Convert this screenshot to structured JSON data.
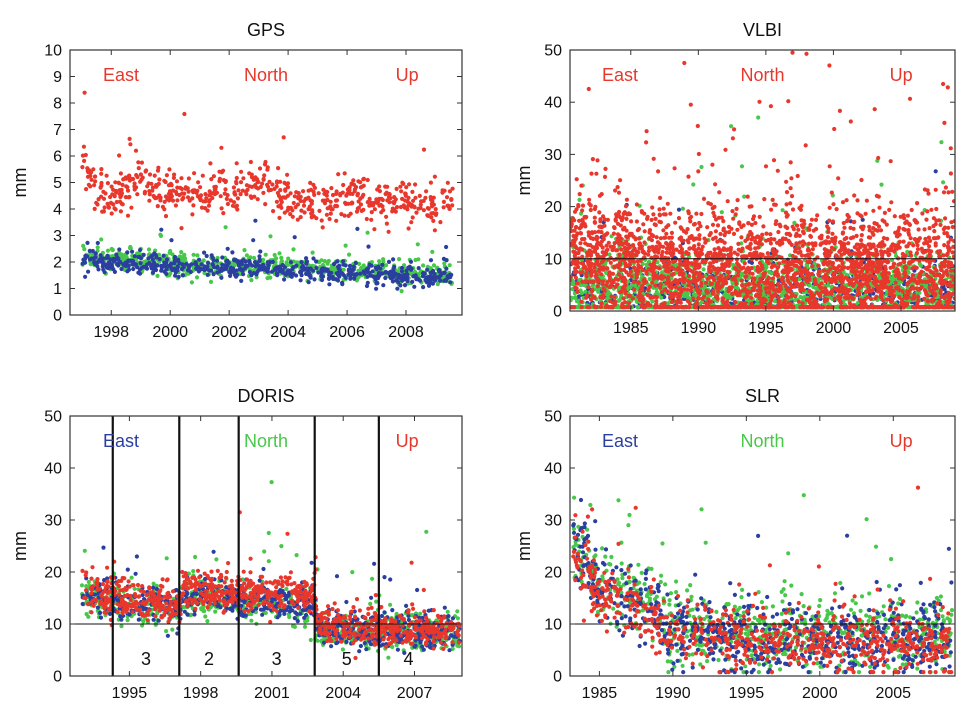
{
  "colors": {
    "east": "#2b3fa0",
    "north": "#48c84a",
    "up": "#e8372c"
  },
  "chart_data": [
    {
      "type": "scatter",
      "title": "GPS",
      "ylabel": "mm",
      "xlim": [
        1996.6,
        2009.9
      ],
      "ylim": [
        0,
        10
      ],
      "xticks": [
        1998,
        2000,
        2002,
        2004,
        2006,
        2008
      ],
      "yticks": [
        0,
        1,
        2,
        3,
        4,
        5,
        6,
        7,
        8,
        9,
        10
      ],
      "legend": [
        {
          "label": "East",
          "color_key": "up",
          "pos": "left"
        },
        {
          "label": "North",
          "color_key": "up",
          "pos": "center"
        },
        {
          "label": "Up",
          "color_key": "up",
          "pos": "right"
        }
      ],
      "series": [
        {
          "name": "Up",
          "color_key": "up",
          "x_range": [
            1997.0,
            2009.6
          ],
          "y_points": [
            [
              1997.0,
              5.9
            ],
            [
              1997.5,
              4.7
            ],
            [
              1998.0,
              4.4
            ],
            [
              1998.5,
              4.6
            ],
            [
              1999.0,
              5.5
            ],
            [
              1999.5,
              4.6
            ],
            [
              2000.0,
              4.6
            ],
            [
              2001.0,
              4.6
            ],
            [
              2002.0,
              4.7
            ],
            [
              2003.0,
              4.9
            ],
            [
              2004.0,
              4.5
            ],
            [
              2005.0,
              4.2
            ],
            [
              2006.0,
              4.6
            ],
            [
              2007.0,
              4.3
            ],
            [
              2008.0,
              4.2
            ],
            [
              2009.0,
              4.1
            ],
            [
              2009.6,
              4.2
            ]
          ],
          "spread": 0.4,
          "count": 600
        },
        {
          "name": "North",
          "color_key": "north",
          "x_range": [
            1997.0,
            2009.6
          ],
          "y_points": [
            [
              1997.0,
              2.2
            ],
            [
              2000.0,
              1.9
            ],
            [
              2003.0,
              1.9
            ],
            [
              2006.0,
              1.7
            ],
            [
              2009.6,
              1.5
            ]
          ],
          "spread": 0.22,
          "count": 600
        },
        {
          "name": "East",
          "color_key": "east",
          "x_range": [
            1997.0,
            2009.6
          ],
          "y_points": [
            [
              1997.0,
              2.1
            ],
            [
              2000.0,
              1.8
            ],
            [
              2003.0,
              1.8
            ],
            [
              2006.0,
              1.6
            ],
            [
              2009.6,
              1.4
            ]
          ],
          "spread": 0.2,
          "count": 600
        }
      ]
    },
    {
      "type": "scatter",
      "title": "VLBI",
      "ylabel": "mm",
      "xlim": [
        1980.5,
        2009.0
      ],
      "ylim": [
        0,
        50
      ],
      "xticks": [
        1985,
        1990,
        1995,
        2000,
        2005
      ],
      "yticks": [
        0,
        10,
        20,
        30,
        40,
        50
      ],
      "reference_line": 10,
      "legend": [
        {
          "label": "East",
          "color_key": "up",
          "pos": "left"
        },
        {
          "label": "North",
          "color_key": "up",
          "pos": "center"
        },
        {
          "label": "Up",
          "color_key": "up",
          "pos": "right"
        }
      ],
      "series": [
        {
          "name": "East",
          "color_key": "east",
          "x_range": [
            1980.5,
            2009.0
          ],
          "y_points": [
            [
              1980.5,
              4
            ],
            [
              2009.0,
              4
            ]
          ],
          "spread": 3,
          "count": 700
        },
        {
          "name": "North",
          "color_key": "north",
          "x_range": [
            1980.5,
            2009.0
          ],
          "y_points": [
            [
              1980.5,
              4.5
            ],
            [
              2009.0,
              4
            ]
          ],
          "spread": 3.5,
          "count": 1400
        },
        {
          "name": "Up",
          "color_key": "up",
          "x_range": [
            1980.5,
            2009.0
          ],
          "y_points": [
            [
              1980.5,
              12
            ],
            [
              1984.0,
              10
            ],
            [
              1990.0,
              8
            ],
            [
              2000.0,
              7.5
            ],
            [
              2009.0,
              7
            ]
          ],
          "spread": 6,
          "count": 2600
        }
      ]
    },
    {
      "type": "scatter",
      "title": "DORIS",
      "ylabel": "mm",
      "xlim": [
        1992.5,
        2009.0
      ],
      "ylim": [
        0,
        50
      ],
      "xticks": [
        1995,
        1998,
        2001,
        2004,
        2007
      ],
      "yticks": [
        0,
        10,
        20,
        30,
        40,
        50
      ],
      "reference_line": 10,
      "dividers": [
        1994.3,
        1997.1,
        1999.6,
        2002.8,
        2005.5
      ],
      "segment_labels": [
        {
          "x": 1995.7,
          "text": "3"
        },
        {
          "x": 1998.35,
          "text": "2"
        },
        {
          "x": 2001.2,
          "text": "3"
        },
        {
          "x": 2004.15,
          "text": "5"
        },
        {
          "x": 2006.75,
          "text": "4"
        }
      ],
      "legend": [
        {
          "label": "East",
          "color_key": "east",
          "pos": "left"
        },
        {
          "label": "North",
          "color_key": "north",
          "pos": "center"
        },
        {
          "label": "Up",
          "color_key": "up",
          "pos": "right"
        }
      ],
      "series": [
        {
          "name": "North",
          "color_key": "north",
          "x_range": [
            1993.0,
            2008.9
          ],
          "y_points": [
            [
              1993.0,
              15
            ],
            [
              1994.3,
              14
            ],
            [
              1997.1,
              13
            ],
            [
              1997.2,
              15
            ],
            [
              1999.6,
              15
            ],
            [
              1999.7,
              14
            ],
            [
              2002.8,
              13
            ],
            [
              2002.9,
              9
            ],
            [
              2005.5,
              8.5
            ],
            [
              2008.9,
              8.5
            ]
          ],
          "spread": 1.8,
          "count": 700
        },
        {
          "name": "East",
          "color_key": "east",
          "x_range": [
            1993.0,
            2008.9
          ],
          "y_points": [
            [
              1993.0,
              16
            ],
            [
              1994.3,
              14
            ],
            [
              1997.1,
              13
            ],
            [
              1997.2,
              15
            ],
            [
              1999.6,
              15
            ],
            [
              1999.7,
              14.5
            ],
            [
              2002.8,
              14
            ],
            [
              2002.9,
              9.5
            ],
            [
              2005.5,
              8.5
            ],
            [
              2008.9,
              8.5
            ]
          ],
          "spread": 1.8,
          "count": 700
        },
        {
          "name": "Up",
          "color_key": "up",
          "x_range": [
            1993.0,
            2008.9
          ],
          "y_points": [
            [
              1993.0,
              17
            ],
            [
              1994.3,
              15
            ],
            [
              1997.1,
              14
            ],
            [
              1997.2,
              16.5
            ],
            [
              1999.6,
              16
            ],
            [
              1999.7,
              15.5
            ],
            [
              2002.8,
              15.5
            ],
            [
              2002.9,
              10.5
            ],
            [
              2005.5,
              9
            ],
            [
              2008.9,
              9
            ]
          ],
          "spread": 1.8,
          "count": 900
        }
      ]
    },
    {
      "type": "scatter",
      "title": "SLR",
      "ylabel": "mm",
      "xlim": [
        1983.0,
        2009.2
      ],
      "ylim": [
        0,
        50
      ],
      "xticks": [
        1985,
        1990,
        1995,
        2000,
        2005
      ],
      "yticks": [
        0,
        10,
        20,
        30,
        40,
        50
      ],
      "reference_line": 10,
      "legend": [
        {
          "label": "East",
          "color_key": "east",
          "pos": "left"
        },
        {
          "label": "North",
          "color_key": "north",
          "pos": "center"
        },
        {
          "label": "Up",
          "color_key": "up",
          "pos": "right"
        }
      ],
      "series": [
        {
          "name": "North",
          "color_key": "north",
          "x_range": [
            1983.2,
            2009.0
          ],
          "y_points": [
            [
              1983.2,
              26
            ],
            [
              1985.0,
              18
            ],
            [
              1988.5,
              14
            ],
            [
              1989.5,
              9
            ],
            [
              1995.0,
              8
            ],
            [
              2000.0,
              8
            ],
            [
              2009.0,
              8
            ]
          ],
          "spread": 3.5,
          "count": 700
        },
        {
          "name": "East",
          "color_key": "east",
          "x_range": [
            1983.2,
            2009.0
          ],
          "y_points": [
            [
              1983.2,
              25
            ],
            [
              1985.0,
              17
            ],
            [
              1988.5,
              13
            ],
            [
              1989.5,
              8.5
            ],
            [
              1995.0,
              7
            ],
            [
              2000.0,
              7
            ],
            [
              2009.0,
              6.5
            ]
          ],
          "spread": 3.5,
          "count": 700
        },
        {
          "name": "Up",
          "color_key": "up",
          "x_range": [
            1983.2,
            2009.0
          ],
          "y_points": [
            [
              1983.2,
              24
            ],
            [
              1985.0,
              16
            ],
            [
              1988.5,
              12
            ],
            [
              1989.5,
              8
            ],
            [
              1995.0,
              7
            ],
            [
              2000.0,
              6.5
            ],
            [
              2009.0,
              6
            ]
          ],
          "spread": 3,
          "count": 700
        }
      ]
    }
  ]
}
